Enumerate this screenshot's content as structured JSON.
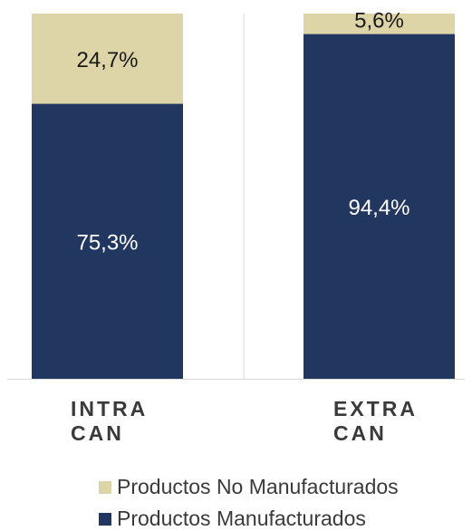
{
  "chart_data": {
    "type": "bar",
    "stacked": true,
    "percent_stacked": true,
    "categories": [
      "INTRA CAN",
      "EXTRA CAN"
    ],
    "category_labels": [
      "INTRA\nCAN",
      "EXTRA\nCAN"
    ],
    "series": [
      {
        "name": "Productos Manufacturados",
        "values": [
          75.3,
          94.4
        ],
        "labels": [
          "75,3%",
          "94,4%"
        ],
        "color": "#22375f"
      },
      {
        "name": "Productos No Manufacturados",
        "values": [
          24.7,
          5.6
        ],
        "labels": [
          "24,7%",
          "5,6%"
        ],
        "color": "#ddd5a8"
      }
    ],
    "ylim": [
      0,
      100
    ],
    "grid": false,
    "legend_position": "bottom",
    "legend_order": [
      "Productos No Manufacturados",
      "Productos Manufacturados"
    ]
  }
}
